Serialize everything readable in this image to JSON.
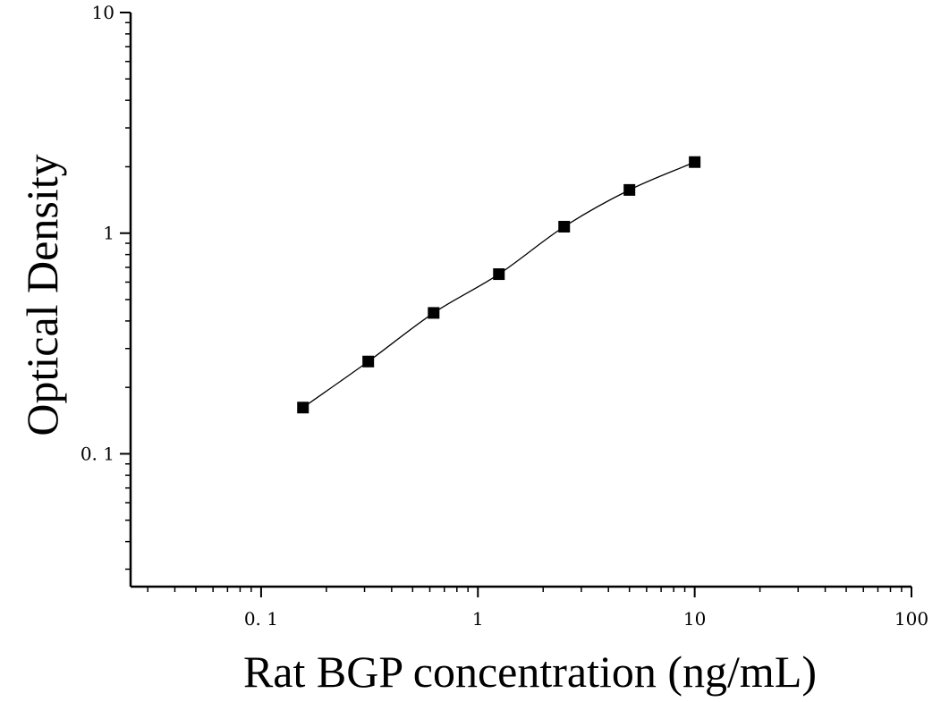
{
  "chart_data": {
    "type": "scatter",
    "title": "",
    "xlabel": "Rat BGP concentration (ng/mL)",
    "ylabel": "Optical Density",
    "x_scale": "log",
    "y_scale": "log",
    "xlim": [
      0.025,
      100
    ],
    "ylim": [
      0.025,
      10
    ],
    "x_ticks": [
      {
        "value": 0.1,
        "label": "0. 1"
      },
      {
        "value": 1,
        "label": "1"
      },
      {
        "value": 10,
        "label": "10"
      },
      {
        "value": 100,
        "label": "100"
      }
    ],
    "y_ticks": [
      {
        "value": 0.1,
        "label": "0. 1"
      },
      {
        "value": 1,
        "label": "1"
      },
      {
        "value": 10,
        "label": "10"
      }
    ],
    "grid": false,
    "legend": "none",
    "marker": "square",
    "marker_color": "#000000",
    "curve_color": "#000000",
    "series": [
      {
        "x": [
          0.156,
          0.312,
          0.625,
          1.25,
          2.5,
          5,
          10
        ],
        "y": [
          0.162,
          0.262,
          0.435,
          0.652,
          1.07,
          1.57,
          2.1
        ]
      }
    ]
  }
}
